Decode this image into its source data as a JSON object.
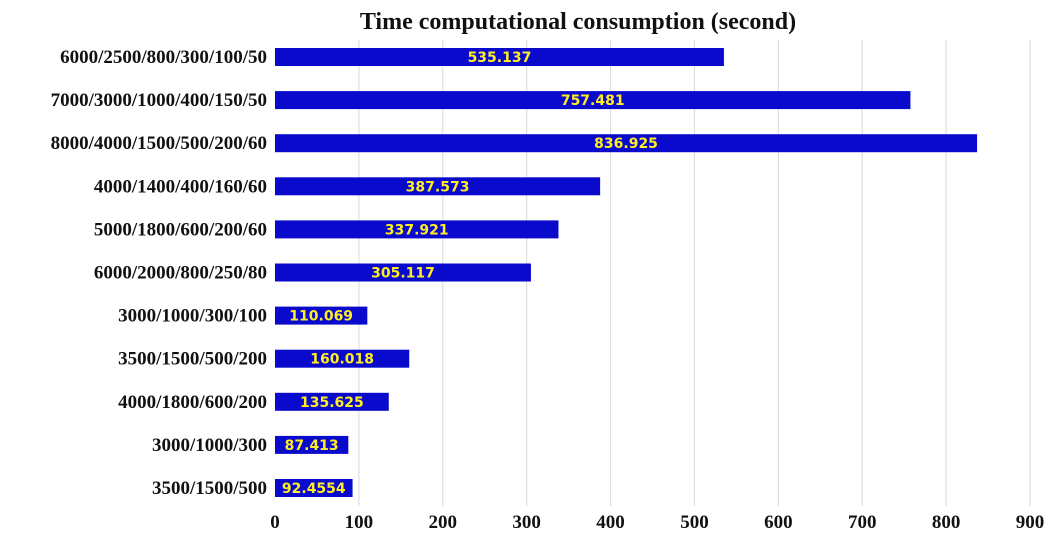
{
  "chart_data": {
    "type": "bar",
    "orientation": "horizontal",
    "title": "Time computational consumption (second)",
    "xlabel": "",
    "ylabel": "",
    "xlim": [
      0,
      900
    ],
    "x_ticks": [
      0,
      100,
      200,
      300,
      400,
      500,
      600,
      700,
      800,
      900
    ],
    "grid": true,
    "legend": "none",
    "bar_color": "#0a0acc",
    "label_color": "#ffee22",
    "categories": [
      "6000/2500/800/300/100/50",
      "7000/3000/1000/400/150/50",
      "8000/4000/1500/500/200/60",
      "4000/1400/400/160/60",
      "5000/1800/600/200/60",
      "6000/2000/800/250/80",
      "3000/1000/300/100",
      "3500/1500/500/200",
      "4000/1800/600/200",
      "3000/1000/300",
      "3500/1500/500"
    ],
    "values": [
      535.137,
      757.481,
      836.925,
      387.573,
      337.921,
      305.117,
      110.069,
      160.018,
      135.625,
      87.413,
      92.4554
    ],
    "value_labels": [
      "535.137",
      "757.481",
      "836.925",
      "387.573",
      "337.921",
      "305.117",
      "110.069",
      "160.018",
      "135.625",
      "87.413",
      "92.4554"
    ]
  }
}
